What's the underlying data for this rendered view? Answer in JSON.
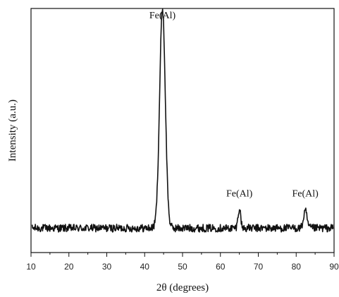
{
  "chart_data": {
    "type": "line",
    "title": "",
    "xlabel": "2θ (degrees)",
    "ylabel": "Intensity (a.u.)",
    "xlim": [
      10,
      90
    ],
    "ylim": [
      0,
      100
    ],
    "x_ticks": [
      10,
      20,
      30,
      40,
      50,
      60,
      70,
      80,
      90
    ],
    "y_ticks_shown": false,
    "grid": false,
    "legend": "none",
    "line_color": "#111111",
    "baseline_level": 10,
    "noise_amplitude": 1.6,
    "peaks": [
      {
        "x": 44.7,
        "height": 90,
        "width": 0.75,
        "label": "Fe(Al)"
      },
      {
        "x": 65.0,
        "height": 8,
        "width": 0.35,
        "label": "Fe(Al)"
      },
      {
        "x": 82.4,
        "height": 7,
        "width": 0.45,
        "label": "Fe(Al)"
      }
    ],
    "annotations": [
      {
        "text": "Fe(Al)",
        "x": 44.7,
        "y": 96
      },
      {
        "text": "Fe(Al)",
        "x": 65.0,
        "y": 23
      },
      {
        "text": "Fe(Al)",
        "x": 82.4,
        "y": 23
      }
    ]
  }
}
